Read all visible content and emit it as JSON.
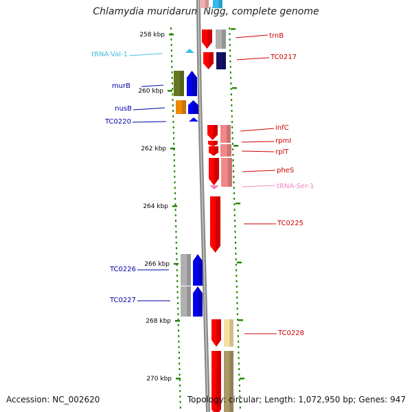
{
  "title": "Chlamydia muridarum Nigg, complete genome",
  "accession": "Accession: NC_002620",
  "summary": "Topology: circular; Length: 1,072,950 bp; Genes: 947",
  "ticks": [
    "258 kbp",
    "260 kbp",
    "262 kbp",
    "264 kbp",
    "266 kbp",
    "268 kbp",
    "270 kbp"
  ],
  "colors": {
    "forward_red": "#ff0000",
    "pink_light": "#f08888",
    "reverse_blue": "#0000ee",
    "cyan": "#33bbee",
    "olive": "#667722",
    "orange": "#ee8800",
    "gray": "#b0b0b0",
    "navy": "#111166",
    "khaki": "#aa9966",
    "pale_yellow": "#f5e0a0",
    "backbone": "#888888",
    "tick_green": "#228800",
    "rna_label": "#44bbdd",
    "trna_pink": "#ee88bb"
  },
  "labels": [
    {
      "text": "trnB",
      "side": "right",
      "color": "#cc0000"
    },
    {
      "text": "TC0217",
      "side": "right",
      "color": "#cc0000"
    },
    {
      "text": "tRNA-Val-1",
      "side": "left",
      "color": "#44bbdd"
    },
    {
      "text": "murB",
      "side": "left",
      "color": "#0000aa"
    },
    {
      "text": "nusB",
      "side": "left",
      "color": "#0000aa"
    },
    {
      "text": "TC0220",
      "side": "left",
      "color": "#0000aa"
    },
    {
      "text": "infC",
      "side": "right",
      "color": "#cc0000"
    },
    {
      "text": "rpmI",
      "side": "right",
      "color": "#cc0000"
    },
    {
      "text": "rplT",
      "side": "right",
      "color": "#cc0000"
    },
    {
      "text": "pheS",
      "side": "right",
      "color": "#cc0000"
    },
    {
      "text": "tRNA-Ser-1",
      "side": "right",
      "color": "#ee88bb"
    },
    {
      "text": "TC0225",
      "side": "right",
      "color": "#cc0000"
    },
    {
      "text": "TC0226",
      "side": "left",
      "color": "#0000aa"
    },
    {
      "text": "TC0227",
      "side": "left",
      "color": "#0000aa"
    },
    {
      "text": "TC0228",
      "side": "right",
      "color": "#cc0000"
    }
  ]
}
